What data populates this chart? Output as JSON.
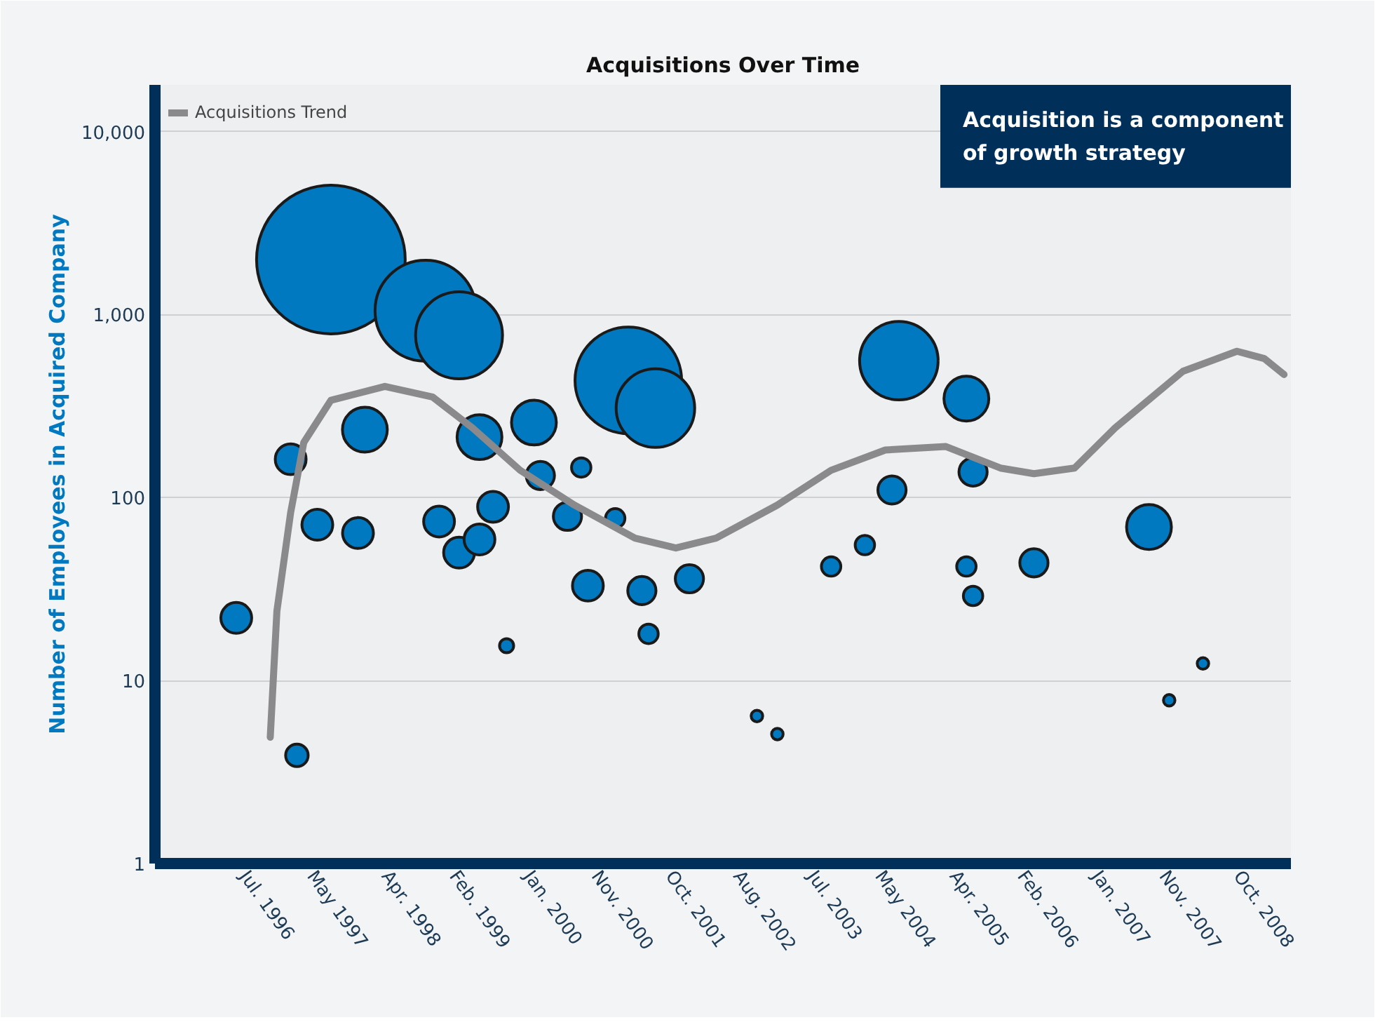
{
  "chart_data": {
    "type": "bubble",
    "title": "Acquisitions Over Time",
    "ylabel": "Number of Employees in Acquired Company",
    "xlim": [
      "1995-06",
      "2009-06"
    ],
    "xticks": [
      {
        "value": "1996-07",
        "label": "Jul. 1996"
      },
      {
        "value": "1997-05",
        "label": "May 1997"
      },
      {
        "value": "1998-04",
        "label": "Apr. 1998"
      },
      {
        "value": "1999-02",
        "label": "Feb. 1999"
      },
      {
        "value": "2000-01",
        "label": "Jan. 2000"
      },
      {
        "value": "2000-11",
        "label": "Nov. 2000"
      },
      {
        "value": "2001-10",
        "label": "Oct. 2001"
      },
      {
        "value": "2002-08",
        "label": "Aug. 2002"
      },
      {
        "value": "2003-07",
        "label": "Jul. 2003"
      },
      {
        "value": "2004-05",
        "label": "May 2004"
      },
      {
        "value": "2005-04",
        "label": "Apr. 2005"
      },
      {
        "value": "2006-02",
        "label": "Feb. 2006"
      },
      {
        "value": "2007-01",
        "label": "Jan. 2007"
      },
      {
        "value": "2007-11",
        "label": "Nov. 2007"
      },
      {
        "value": "2008-10",
        "label": "Oct. 2008"
      }
    ],
    "ylim": [
      1,
      18000
    ],
    "yticks": [
      1,
      10,
      100,
      {
        "value": 1000,
        "label": "1,000"
      },
      {
        "value": 10000,
        "label": "10,000"
      }
    ],
    "log": "y",
    "grid": "y",
    "legend": "top left",
    "annotations": [
      "Acquisition is a component of growth strategy"
    ],
    "series": [
      {
        "color": "#0079c1",
        "x": [
          "1996-06",
          "1997-03",
          "1997-02",
          "1997-06",
          "1997-12",
          "1998-01",
          "1997-08",
          "1998-10",
          "1999-03",
          "1998-12",
          "1999-03",
          "1999-06",
          "1999-08",
          "1999-06",
          "1999-10",
          "2000-02",
          "2000-03",
          "2000-09",
          "2000-07",
          "2000-10",
          "2001-02",
          "2001-04",
          "2001-08",
          "2001-06",
          "2001-07",
          "2002-01",
          "2002-11",
          "2003-02",
          "2003-10",
          "2004-03",
          "2004-07",
          "2004-08",
          "2005-06",
          "2005-07",
          "2005-06",
          "2005-07",
          "2006-04",
          "2007-09",
          "2007-12",
          "2008-05"
        ],
        "values": [
          22,
          3.9,
          162,
          71,
          64,
          235,
          2000,
          1050,
          770,
          74,
          50,
          59,
          89,
          214,
          15.5,
          257,
          132,
          146,
          79,
          33,
          77,
          437,
          308,
          31,
          18,
          36,
          6.4,
          5.1,
          42,
          55,
          110,
          560,
          347,
          138,
          42,
          29,
          44,
          69,
          7.8,
          12.4
        ],
        "sizes": [
          0.043,
          0.023,
          0.043,
          0.043,
          0.043,
          0.091,
          1,
          0.461,
          0.342,
          0.043,
          0.043,
          0.043,
          0.043,
          0.091,
          0.009,
          0.091,
          0.036,
          0.017,
          0.036,
          0.043,
          0.017,
          0.514,
          0.279,
          0.036,
          0.017,
          0.036,
          0.006,
          0.006,
          0.017,
          0.017,
          0.036,
          0.279,
          0.091,
          0.036,
          0.017,
          0.017,
          0.036,
          0.091,
          0.006,
          0.006
        ]
      },
      {
        "type": "line",
        "name": "Acquisitions Trend",
        "color": "#8a8a8d",
        "x": [
          "1996-11",
          "1996-12",
          "1997-02",
          "1997-04",
          "1997-08",
          "1998-04",
          "1998-11",
          "1999-05",
          "1999-12",
          "2000-08",
          "2001-05",
          "2001-11",
          "2002-05",
          "2003-02",
          "2003-10",
          "2004-06",
          "2005-03",
          "2005-11",
          "2006-04",
          "2006-10",
          "2007-04",
          "2008-02",
          "2008-10",
          "2009-02",
          "2009-05"
        ],
        "values": [
          4.9,
          24,
          83,
          200,
          340,
          405,
          355,
          240,
          141,
          91,
          60,
          53,
          60,
          91,
          141,
          182,
          190,
          145,
          135,
          145,
          240,
          490,
          630,
          575,
          470
        ]
      }
    ]
  }
}
